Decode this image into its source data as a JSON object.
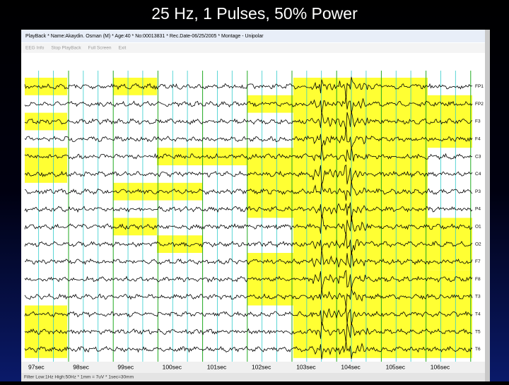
{
  "slide": {
    "title": "25 Hz, 1 Pulses, 50% Power"
  },
  "window": {
    "title": "PlayBack * Name:Akaydin. Osman (M) * Age:40 * No:00013831 * Rec.Date-06/25/2005 * Montage - Unipolar",
    "menu": [
      "EEG Info",
      "Stop PlayBack",
      "Full Screen",
      "Exit"
    ],
    "channels": [
      "FP1",
      "FP2",
      "F3",
      "F4",
      "C3",
      "C4",
      "P3",
      "P4",
      "O1",
      "O2",
      "F7",
      "F8",
      "T3",
      "T4",
      "T5",
      "T6"
    ],
    "time_labels": [
      "97sec",
      "98sec",
      "99sec",
      "100sec",
      "101sec",
      "102sec",
      "103sec",
      "104sec",
      "105sec",
      "106sec"
    ],
    "status": "Filter Low:1Hz High:50Hz * 1mm = 7uV * 1sec=30mm"
  }
}
